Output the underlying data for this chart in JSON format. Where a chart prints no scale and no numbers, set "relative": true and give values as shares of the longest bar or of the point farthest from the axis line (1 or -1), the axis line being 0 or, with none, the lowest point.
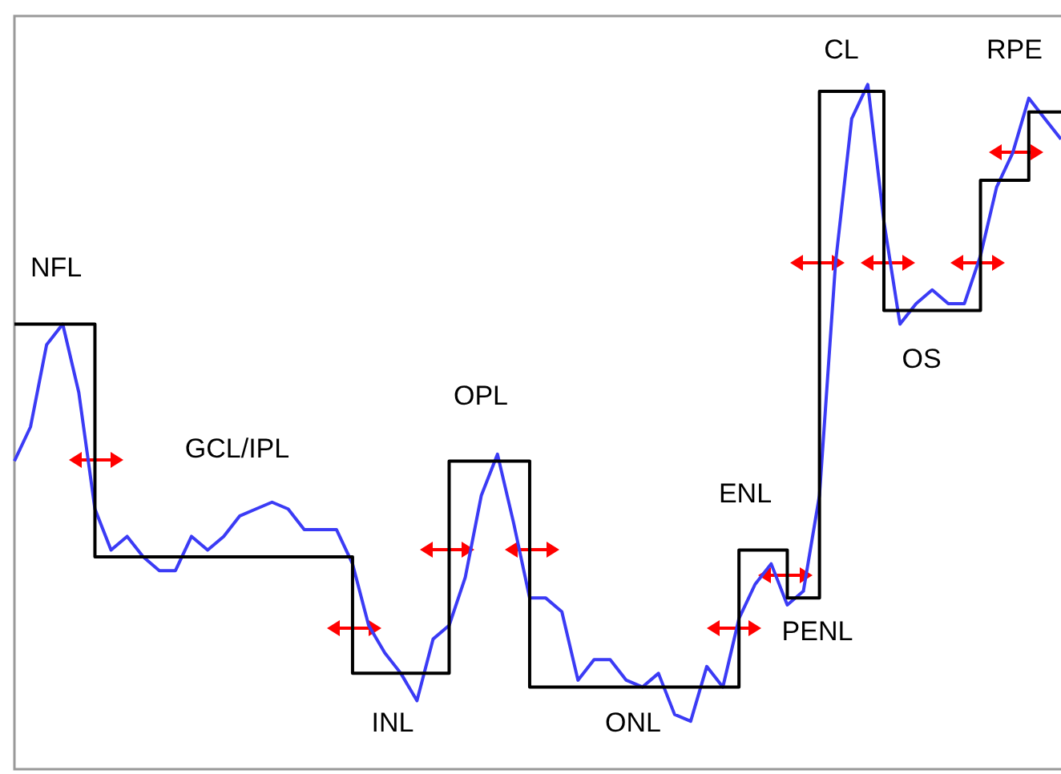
{
  "chart_data": {
    "type": "line",
    "relative": true,
    "categories": [
      null,
      null,
      null,
      null,
      null,
      null,
      null,
      null,
      null,
      null,
      null,
      null,
      null,
      null,
      null,
      null,
      null,
      null,
      null,
      null,
      null,
      null,
      null,
      null,
      null,
      null,
      null,
      null,
      null,
      null,
      null,
      null,
      null,
      null,
      null,
      null,
      null,
      null,
      null,
      null,
      null,
      null,
      null,
      null,
      null,
      null,
      null,
      null,
      null,
      null,
      null,
      null,
      null,
      null,
      null,
      null,
      null,
      null,
      null,
      null,
      null,
      null,
      null,
      null,
      null,
      null
    ],
    "series": [
      {
        "color": "#3b3bf5",
        "values": [
          0.45,
          0.5,
          0.62,
          0.65,
          0.55,
          0.38,
          0.32,
          0.34,
          0.31,
          0.29,
          0.29,
          0.34,
          0.32,
          0.34,
          0.37,
          0.38,
          0.39,
          0.38,
          0.35,
          0.35,
          0.35,
          0.3,
          0.21,
          0.17,
          0.14,
          0.1,
          0.19,
          0.21,
          0.28,
          0.4,
          0.46,
          0.36,
          0.25,
          0.25,
          0.23,
          0.13,
          0.16,
          0.16,
          0.13,
          0.12,
          0.14,
          0.08,
          0.07,
          0.15,
          0.12,
          0.22,
          0.27,
          0.3,
          0.24,
          0.26,
          0.4,
          0.74,
          0.95,
          1.0,
          0.8,
          0.65,
          0.68,
          0.7,
          0.68,
          0.68,
          0.75,
          0.85,
          0.9,
          0.98,
          0.95,
          0.92
        ]
      },
      {
        "type": "step",
        "color": "#000000",
        "values": [
          0.65,
          0.65,
          0.65,
          0.65,
          0.65,
          0.31,
          0.31,
          0.31,
          0.31,
          0.31,
          0.31,
          0.31,
          0.31,
          0.31,
          0.31,
          0.31,
          0.31,
          0.31,
          0.31,
          0.31,
          0.31,
          0.14,
          0.14,
          0.14,
          0.14,
          0.14,
          0.14,
          0.45,
          0.45,
          0.45,
          0.45,
          0.45,
          0.12,
          0.12,
          0.12,
          0.12,
          0.12,
          0.12,
          0.12,
          0.12,
          0.12,
          0.12,
          0.12,
          0.12,
          0.12,
          0.32,
          0.32,
          0.32,
          0.25,
          0.25,
          0.99,
          0.99,
          0.99,
          0.99,
          0.67,
          0.67,
          0.67,
          0.67,
          0.67,
          0.67,
          0.86,
          0.86,
          0.86,
          0.96,
          0.96,
          0.96
        ]
      }
    ],
    "annotations": [
      "NFL",
      "GCL/IPL",
      "INL",
      "OPL",
      "ONL",
      "ENL",
      "PENL",
      "CL",
      "OS",
      "RPE"
    ]
  }
}
